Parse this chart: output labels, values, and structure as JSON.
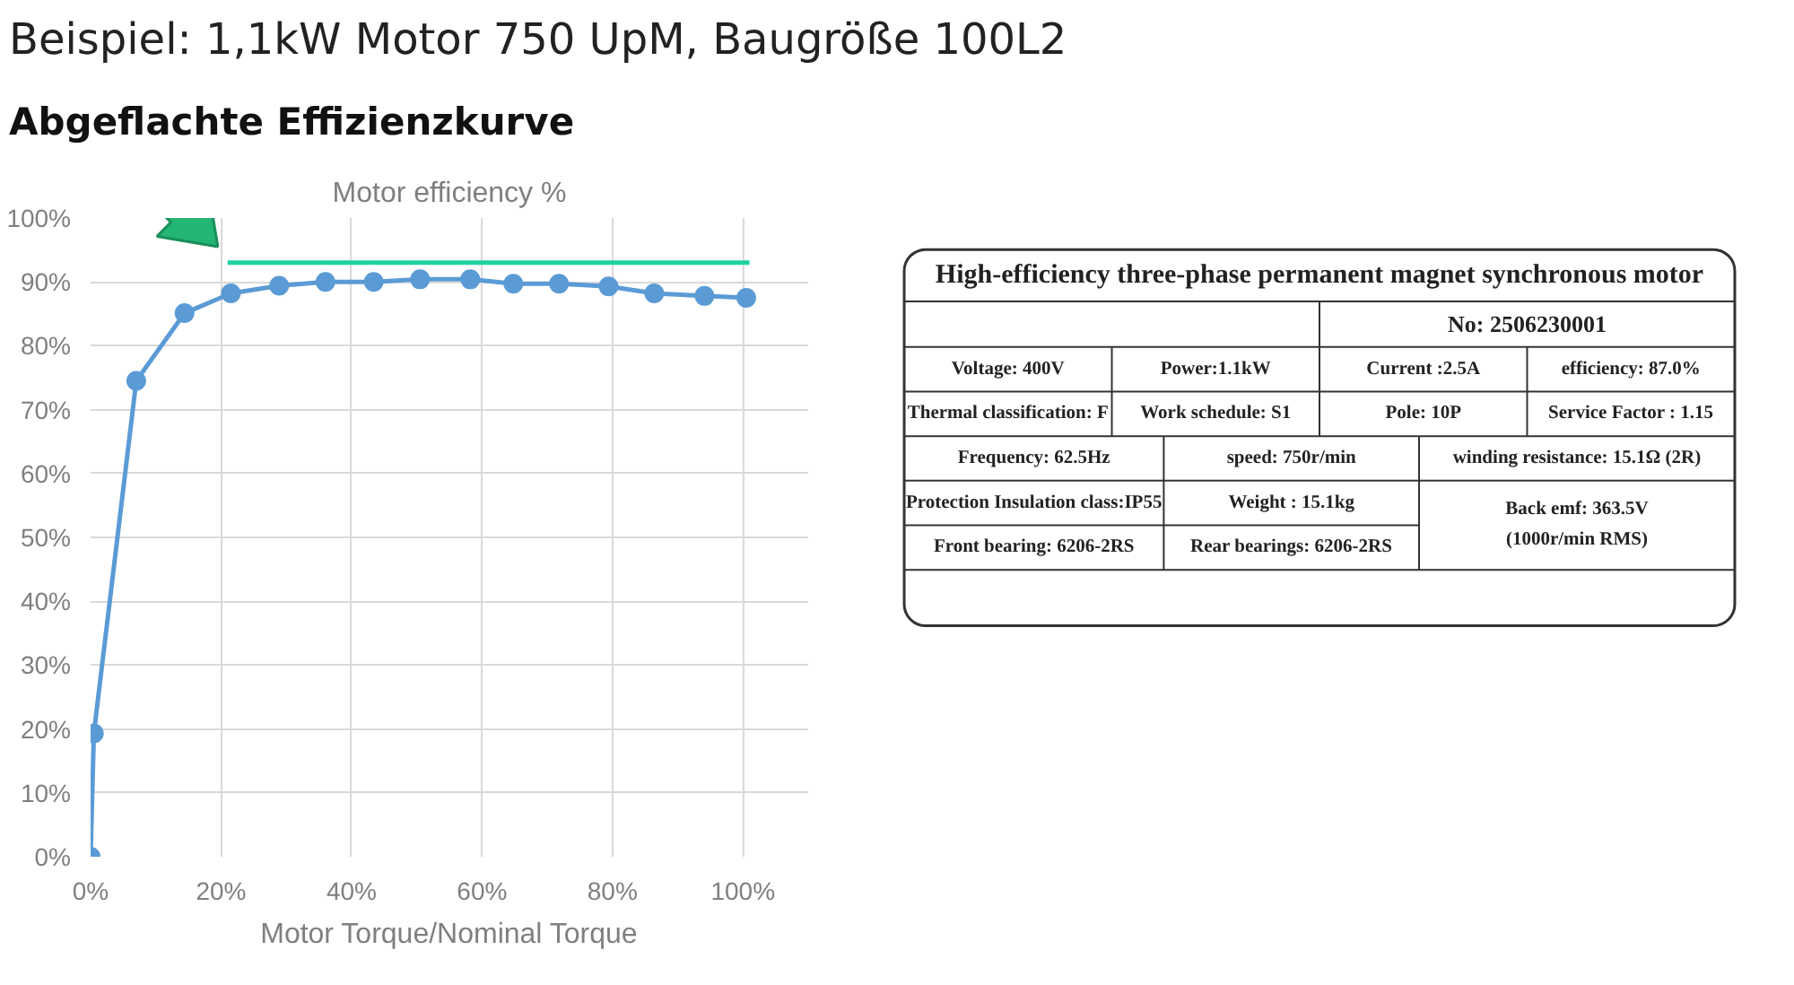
{
  "chart_data": [
    {
      "type": "line",
      "title": "Motor efficiency %",
      "xlabel": "Motor Torque/Nominal Torque",
      "annotations": [
        "Beispiel: 1,1kW Motor 750 UpM, Baugröße 100L2",
        "Abgeflachte Effizienzkurve"
      ],
      "xlim": [
        0,
        110
      ],
      "ylim": [
        0,
        100
      ],
      "xticks": [
        {
          "value": 0,
          "label": "0%"
        },
        {
          "value": 20,
          "label": "20%"
        },
        {
          "value": 40,
          "label": "40%"
        },
        {
          "value": 60,
          "label": "60%"
        },
        {
          "value": 80,
          "label": "80%"
        },
        {
          "value": 100,
          "label": "100%"
        }
      ],
      "yticks": [
        {
          "value": 0,
          "label": "0%"
        },
        {
          "value": 10,
          "label": "10%"
        },
        {
          "value": 20,
          "label": "20%"
        },
        {
          "value": 30,
          "label": "30%"
        },
        {
          "value": 40,
          "label": "40%"
        },
        {
          "value": 50,
          "label": "50%"
        },
        {
          "value": 60,
          "label": "60%"
        },
        {
          "value": 70,
          "label": "70%"
        },
        {
          "value": 80,
          "label": "80%"
        },
        {
          "value": 90,
          "label": "90%"
        },
        {
          "value": 100,
          "label": "100%"
        }
      ],
      "grid": true,
      "marker": "circle",
      "line_style": "solid",
      "series": [
        {
          "color": "#5b9bd5",
          "x": [
            0,
            0.5,
            7,
            14.4,
            21.5,
            28.9,
            36,
            43.4,
            50.5,
            58.2,
            64.8,
            71.8,
            79.4,
            86.4,
            94.1,
            100.5
          ],
          "values": [
            0,
            19.3,
            74.5,
            85.1,
            88.2,
            89.4,
            90,
            90,
            90.4,
            90.4,
            89.7,
            89.7,
            89.3,
            88.2,
            87.8,
            87.5
          ]
        },
        {
          "color": "#1fd1a0",
          "marker": "none",
          "x": [
            21,
            101
          ],
          "values": [
            93,
            93
          ]
        }
      ]
    },
    {
      "type": "other",
      "annotations": [
        "High-efficiency three-phase permanent magnet synchronous motor",
        "No: 2506230001",
        "Voltage: 400V",
        "Power:1.1kW",
        "Current :2.5A",
        "efficiency: 87.0%",
        "Thermal classification: F",
        "Work schedule: S1",
        "Pole: 10P",
        "Service Factor : 1.15",
        "Frequency: 62.5Hz",
        "speed: 750r/min",
        "winding resistance: 15.1Ω (2R)",
        "Protection Insulation class:IP55",
        "Weight : 15.1kg",
        "Front bearing: 6206-2RS",
        "Rear bearings: 6206-2RS",
        "Back emf: 363.5V",
        "(1000r/min RMS)"
      ]
    }
  ]
}
